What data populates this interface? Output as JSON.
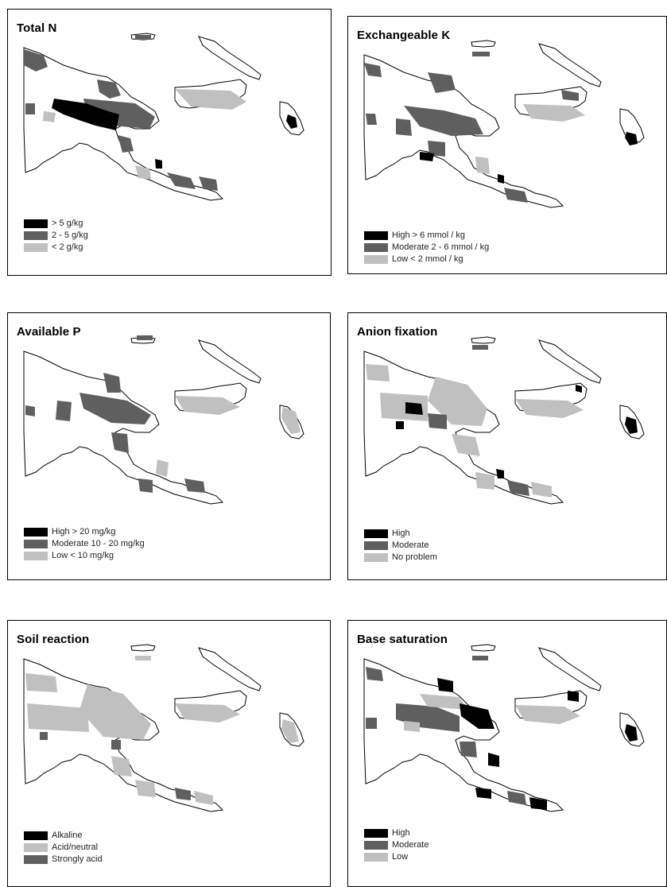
{
  "colors": {
    "high": "#000000",
    "moderate": "#5f5f5f",
    "low": "#c0c0c0",
    "outline": "#000000",
    "background": "#ffffff"
  },
  "panels": [
    {
      "title": "Total N",
      "legend": [
        {
          "label": "> 5 g/kg",
          "color": "#000000"
        },
        {
          "label": "2 - 5 g/kg",
          "color": "#5f5f5f"
        },
        {
          "label": "< 2 g/kg",
          "color": "#c0c0c0"
        }
      ]
    },
    {
      "title": "Exchangeable K",
      "legend": [
        {
          "label": "High  > 6 mmol / kg",
          "color": "#000000"
        },
        {
          "label": "Moderate  2 - 6 mmol / kg",
          "color": "#5f5f5f"
        },
        {
          "label": "Low  < 2 mmol / kg",
          "color": "#c0c0c0"
        }
      ]
    },
    {
      "title": "Available P",
      "legend": [
        {
          "label": "High  > 20 mg/kg",
          "color": "#000000"
        },
        {
          "label": "Moderate  10 - 20 mg/kg",
          "color": "#5f5f5f"
        },
        {
          "label": "Low  < 10 mg/kg",
          "color": "#c0c0c0"
        }
      ]
    },
    {
      "title": "Anion fixation",
      "legend": [
        {
          "label": "High",
          "color": "#000000"
        },
        {
          "label": "Moderate",
          "color": "#5f5f5f"
        },
        {
          "label": "No problem",
          "color": "#c0c0c0"
        }
      ]
    },
    {
      "title": "Soil reaction",
      "legend": [
        {
          "label": "Alkaline",
          "color": "#000000"
        },
        {
          "label": "Acid/neutral",
          "color": "#c0c0c0"
        },
        {
          "label": "Strongly acid",
          "color": "#5f5f5f"
        }
      ]
    },
    {
      "title": "Base saturation",
      "legend": [
        {
          "label": "High",
          "color": "#000000"
        },
        {
          "label": "Moderate",
          "color": "#5f5f5f"
        },
        {
          "label": "Low",
          "color": "#c0c0c0"
        }
      ]
    }
  ]
}
